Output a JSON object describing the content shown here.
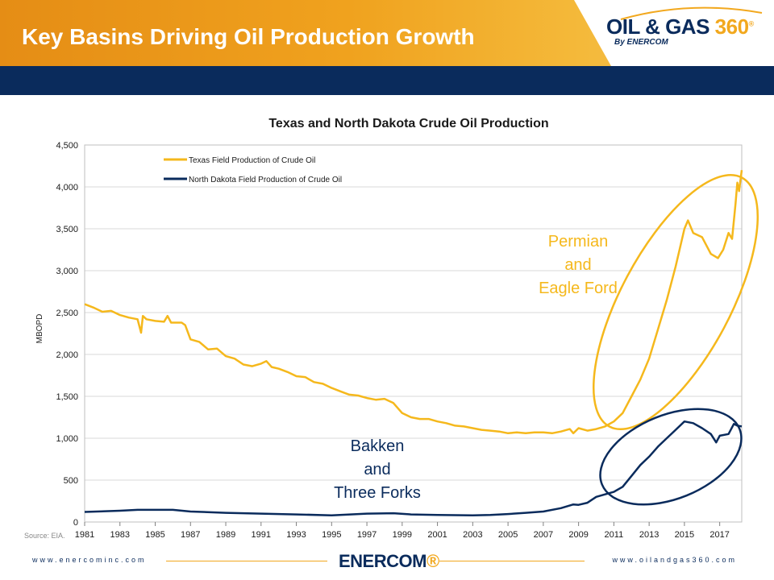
{
  "slide": {
    "title": "Key Basins Driving Oil Production Growth",
    "source": "Source: EIA.",
    "footer_left": "www.enercominc.com",
    "footer_right": "www.oilandgas360.com",
    "footer_logo": "ENERCOM",
    "logo_main": "OIL & GAS",
    "logo_num": "360",
    "logo_sub": "By ENERCOM"
  },
  "colors": {
    "texas": "#f5b81c",
    "north_dakota": "#0a2b5c",
    "navy": "#0a2b5c",
    "orange": "#e58d15"
  },
  "chart_data": {
    "type": "line",
    "title": "Texas and North Dakota Crude Oil Production",
    "ylabel": "MBOPD",
    "xlabel": "",
    "xlim": [
      1981,
      2018.25
    ],
    "ylim": [
      0,
      4500
    ],
    "yticks": [
      0,
      500,
      1000,
      1500,
      2000,
      2500,
      3000,
      3500,
      4000,
      4500
    ],
    "ytick_labels": [
      "0",
      "500",
      "1,000",
      "1,500",
      "2,000",
      "2,500",
      "3,000",
      "3,500",
      "4,000",
      "4,500"
    ],
    "xticks": [
      1981,
      1983,
      1985,
      1987,
      1989,
      1991,
      1993,
      1995,
      1997,
      1999,
      2001,
      2003,
      2005,
      2007,
      2009,
      2011,
      2013,
      2015,
      2017
    ],
    "legend_position": "top-left",
    "series": [
      {
        "name": "Texas Field Production of Crude Oil",
        "color": "#f5b81c",
        "points": [
          [
            1981.0,
            2600
          ],
          [
            1981.5,
            2560
          ],
          [
            1982.0,
            2510
          ],
          [
            1982.5,
            2520
          ],
          [
            1983.0,
            2470
          ],
          [
            1983.5,
            2440
          ],
          [
            1984.0,
            2420
          ],
          [
            1984.2,
            2260
          ],
          [
            1984.3,
            2460
          ],
          [
            1984.5,
            2420
          ],
          [
            1985.0,
            2400
          ],
          [
            1985.5,
            2390
          ],
          [
            1985.7,
            2460
          ],
          [
            1985.9,
            2380
          ],
          [
            1986.5,
            2380
          ],
          [
            1986.7,
            2350
          ],
          [
            1987.0,
            2180
          ],
          [
            1987.5,
            2150
          ],
          [
            1988.0,
            2060
          ],
          [
            1988.5,
            2070
          ],
          [
            1989.0,
            1980
          ],
          [
            1989.5,
            1950
          ],
          [
            1990.0,
            1880
          ],
          [
            1990.5,
            1860
          ],
          [
            1991.0,
            1890
          ],
          [
            1991.3,
            1920
          ],
          [
            1991.6,
            1850
          ],
          [
            1992.0,
            1830
          ],
          [
            1992.5,
            1790
          ],
          [
            1993.0,
            1740
          ],
          [
            1993.5,
            1730
          ],
          [
            1994.0,
            1670
          ],
          [
            1994.5,
            1650
          ],
          [
            1995.0,
            1600
          ],
          [
            1995.5,
            1560
          ],
          [
            1996.0,
            1520
          ],
          [
            1996.5,
            1510
          ],
          [
            1997.0,
            1480
          ],
          [
            1997.5,
            1460
          ],
          [
            1998.0,
            1470
          ],
          [
            1998.5,
            1420
          ],
          [
            1999.0,
            1300
          ],
          [
            1999.5,
            1250
          ],
          [
            2000.0,
            1230
          ],
          [
            2000.5,
            1230
          ],
          [
            2001.0,
            1200
          ],
          [
            2001.5,
            1180
          ],
          [
            2002.0,
            1150
          ],
          [
            2002.5,
            1140
          ],
          [
            2003.0,
            1120
          ],
          [
            2003.5,
            1100
          ],
          [
            2004.0,
            1090
          ],
          [
            2004.5,
            1080
          ],
          [
            2005.0,
            1060
          ],
          [
            2005.5,
            1070
          ],
          [
            2006.0,
            1060
          ],
          [
            2006.5,
            1070
          ],
          [
            2007.0,
            1070
          ],
          [
            2007.5,
            1060
          ],
          [
            2008.0,
            1080
          ],
          [
            2008.5,
            1110
          ],
          [
            2008.7,
            1060
          ],
          [
            2009.0,
            1120
          ],
          [
            2009.5,
            1090
          ],
          [
            2010.0,
            1110
          ],
          [
            2010.5,
            1140
          ],
          [
            2011.0,
            1200
          ],
          [
            2011.5,
            1300
          ],
          [
            2012.0,
            1500
          ],
          [
            2012.5,
            1700
          ],
          [
            2013.0,
            1950
          ],
          [
            2013.5,
            2300
          ],
          [
            2014.0,
            2650
          ],
          [
            2014.5,
            3050
          ],
          [
            2015.0,
            3500
          ],
          [
            2015.2,
            3600
          ],
          [
            2015.5,
            3450
          ],
          [
            2016.0,
            3400
          ],
          [
            2016.5,
            3200
          ],
          [
            2016.9,
            3150
          ],
          [
            2017.2,
            3250
          ],
          [
            2017.5,
            3450
          ],
          [
            2017.7,
            3380
          ],
          [
            2017.9,
            3800
          ],
          [
            2018.0,
            4050
          ],
          [
            2018.1,
            3950
          ],
          [
            2018.25,
            4200
          ]
        ]
      },
      {
        "name": "North Dakota Field Production of Crude Oil",
        "color": "#0a2b5c",
        "points": [
          [
            1981.0,
            120
          ],
          [
            1983.0,
            135
          ],
          [
            1984.0,
            145
          ],
          [
            1986.0,
            145
          ],
          [
            1987.0,
            125
          ],
          [
            1989.0,
            110
          ],
          [
            1991.0,
            100
          ],
          [
            1993.0,
            90
          ],
          [
            1995.0,
            80
          ],
          [
            1997.0,
            100
          ],
          [
            1998.5,
            105
          ],
          [
            1999.5,
            90
          ],
          [
            2001.0,
            85
          ],
          [
            2003.0,
            80
          ],
          [
            2004.0,
            85
          ],
          [
            2005.0,
            95
          ],
          [
            2006.0,
            110
          ],
          [
            2007.0,
            125
          ],
          [
            2008.0,
            165
          ],
          [
            2008.7,
            210
          ],
          [
            2009.0,
            205
          ],
          [
            2009.5,
            230
          ],
          [
            2010.0,
            300
          ],
          [
            2010.5,
            330
          ],
          [
            2011.0,
            360
          ],
          [
            2011.5,
            420
          ],
          [
            2012.0,
            550
          ],
          [
            2012.5,
            680
          ],
          [
            2013.0,
            780
          ],
          [
            2013.5,
            900
          ],
          [
            2014.0,
            1000
          ],
          [
            2014.5,
            1100
          ],
          [
            2015.0,
            1200
          ],
          [
            2015.5,
            1180
          ],
          [
            2016.0,
            1120
          ],
          [
            2016.5,
            1050
          ],
          [
            2016.8,
            950
          ],
          [
            2017.0,
            1030
          ],
          [
            2017.5,
            1050
          ],
          [
            2017.8,
            1170
          ],
          [
            2018.0,
            1150
          ],
          [
            2018.25,
            1140
          ]
        ]
      }
    ],
    "annotations": [
      {
        "id": "permian",
        "lines": [
          "Permian",
          "and",
          "Eagle Ford"
        ]
      },
      {
        "id": "bakken",
        "lines": [
          "Bakken",
          "and",
          "Three Forks"
        ]
      }
    ]
  }
}
